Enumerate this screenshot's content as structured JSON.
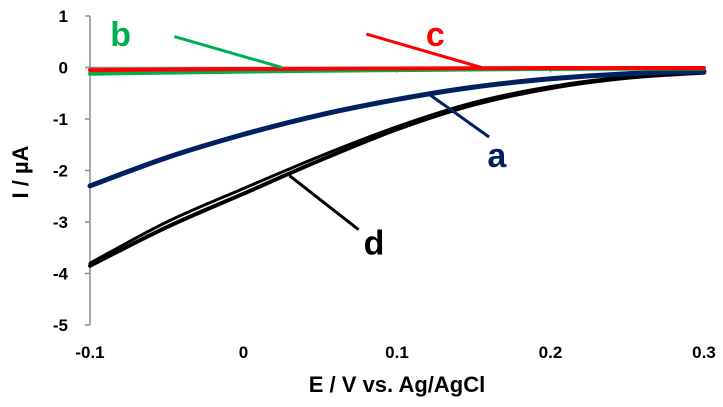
{
  "chart_data": {
    "type": "line",
    "xlabel": "E / V vs. Ag/AgCl",
    "ylabel": "I / µA",
    "xlim": [
      -0.1,
      0.3
    ],
    "ylim": [
      -5,
      1
    ],
    "xticks": [
      "-0.1",
      "0",
      "0.1",
      "0.2",
      "0.3"
    ],
    "yticks": [
      "1",
      "0",
      "-1",
      "-2",
      "-3",
      "-4",
      "-5"
    ],
    "grid": false,
    "legend": "none",
    "series": [
      {
        "label": "a",
        "color": "#002060",
        "x": [
          -0.1,
          -0.05,
          0.0,
          0.05,
          0.1,
          0.15,
          0.2,
          0.25,
          0.3
        ],
        "y": [
          -2.3,
          -1.75,
          -1.3,
          -0.92,
          -0.62,
          -0.38,
          -0.22,
          -0.12,
          -0.08
        ],
        "label_x": 0.165,
        "label_y": -1.7,
        "leader": [
          [
            0.12,
            -0.5
          ],
          [
            0.16,
            -1.35
          ]
        ]
      },
      {
        "label": "b",
        "color": "#00b050",
        "x": [
          -0.1,
          0.0,
          0.1,
          0.2,
          0.3
        ],
        "y": [
          -0.12,
          -0.08,
          -0.05,
          -0.03,
          -0.02
        ],
        "label_x": -0.08,
        "label_y": 0.65,
        "leader": [
          [
            -0.045,
            0.6
          ],
          [
            0.025,
            0.0
          ]
        ]
      },
      {
        "label": "c",
        "color": "#ff0000",
        "x": [
          -0.1,
          0.0,
          0.1,
          0.2,
          0.3
        ],
        "y": [
          -0.05,
          -0.03,
          -0.02,
          -0.01,
          -0.01
        ],
        "label_x": 0.125,
        "label_y": 0.65,
        "leader": [
          [
            0.08,
            0.65
          ],
          [
            0.155,
            0.0
          ]
        ]
      },
      {
        "label": "d",
        "color": "#000000",
        "x": [
          -0.1,
          -0.05,
          0.0,
          0.05,
          0.1,
          0.15,
          0.2,
          0.25,
          0.3
        ],
        "y": [
          -3.85,
          -3.1,
          -2.45,
          -1.8,
          -1.2,
          -0.72,
          -0.4,
          -0.2,
          -0.1
        ],
        "y2": [
          -3.8,
          -3.0,
          -2.35,
          -1.72,
          -1.15,
          -0.68,
          -0.37,
          -0.18,
          -0.1
        ],
        "label_x": 0.085,
        "label_y": -3.4,
        "leader": [
          [
            0.03,
            -2.1
          ],
          [
            0.075,
            -3.15
          ]
        ]
      }
    ]
  }
}
